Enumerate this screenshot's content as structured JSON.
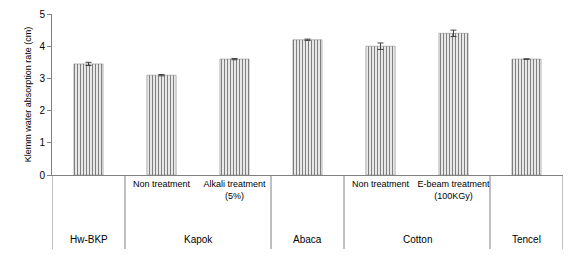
{
  "chart_data": {
    "type": "bar",
    "y_label": "Klemm water absorption rate (cm)",
    "categories": [
      null,
      "Non treatment",
      "Alkali treatment (5%)",
      null,
      "Non treatment",
      "E-beam treatment (100KGy)",
      null
    ],
    "groups": [
      "Hw-BKP",
      "Kapok",
      "Kapok",
      "Abaca",
      "Cotton",
      "Cotton",
      "Tencel"
    ],
    "values": [
      3.45,
      3.1,
      3.6,
      4.2,
      4.0,
      4.4,
      3.6
    ],
    "errors": [
      0.05,
      0.02,
      0.02,
      0.02,
      0.1,
      0.1,
      0.01
    ],
    "color": "#bfbfbf",
    "ylim": [
      0,
      5
    ],
    "yticks": [
      0,
      1,
      2,
      3,
      4,
      5
    ],
    "grid": false
  }
}
